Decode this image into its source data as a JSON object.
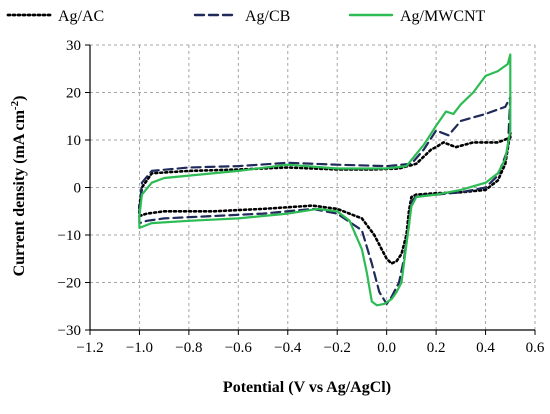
{
  "chart_data": {
    "type": "line",
    "xlabel": "Potential (V vs Ag/AgCl)",
    "ylabel_main": "Current density (mA cm",
    "ylabel_sup": "-2",
    "ylabel_close": ")",
    "xlim": [
      -1.2,
      0.6
    ],
    "ylim": [
      -30,
      30
    ],
    "xticks": [
      -1.2,
      -1.0,
      -0.8,
      -0.6,
      -0.4,
      -0.2,
      0.0,
      0.2,
      0.4,
      0.6
    ],
    "xtick_labels": [
      "−1.2",
      "−1.0",
      "−0.8",
      "−0.6",
      "−0.4",
      "−0.2",
      "0.0",
      "0.2",
      "0.4",
      "0.6"
    ],
    "yticks": [
      -30,
      -20,
      -10,
      0,
      10,
      20,
      30
    ],
    "ytick_labels": [
      "−30",
      "−20",
      "−10",
      "0",
      "10",
      "20",
      "30"
    ],
    "grid": true,
    "legend_position": "top",
    "series": [
      {
        "name": "Ag/AC",
        "color": "#000000",
        "dash": "dotted",
        "x": [
          -1.0,
          -0.99,
          -0.95,
          -0.8,
          -0.6,
          -0.4,
          -0.2,
          -0.05,
          0.05,
          0.12,
          0.18,
          0.2,
          0.23,
          0.28,
          0.35,
          0.45,
          0.5,
          0.5,
          0.48,
          0.45,
          0.4,
          0.3,
          0.2,
          0.12,
          0.1,
          0.09,
          0.08,
          0.06,
          0.04,
          0.02,
          0.0,
          -0.02,
          -0.05,
          -0.1,
          -0.2,
          -0.3,
          -0.5,
          -0.7,
          -0.9,
          -0.97,
          -1.0,
          -1.0
        ],
        "y": [
          -4,
          0,
          3,
          3.5,
          3.8,
          4.2,
          3.8,
          3.8,
          4.0,
          5.0,
          8.0,
          8.5,
          9.5,
          8.5,
          9.5,
          9.5,
          10.5,
          11.5,
          5.0,
          1.5,
          -0.5,
          -1.0,
          -1.2,
          -1.5,
          -2.0,
          -5.0,
          -10.0,
          -14.0,
          -15.5,
          -16.0,
          -15.0,
          -13.0,
          -10.0,
          -6.5,
          -4.5,
          -3.8,
          -4.5,
          -5.0,
          -5.0,
          -5.5,
          -6.0,
          -4.0
        ]
      },
      {
        "name": "Ag/CB",
        "color": "#1f2a5a",
        "dash": "dashed",
        "x": [
          -1.0,
          -0.99,
          -0.95,
          -0.8,
          -0.6,
          -0.4,
          -0.2,
          0.0,
          0.1,
          0.15,
          0.2,
          0.25,
          0.3,
          0.4,
          0.48,
          0.5,
          0.49,
          0.45,
          0.4,
          0.3,
          0.2,
          0.12,
          0.1,
          0.09,
          0.07,
          0.05,
          0.02,
          0.0,
          -0.03,
          -0.06,
          -0.1,
          -0.2,
          -0.3,
          -0.5,
          -0.7,
          -0.9,
          -0.97,
          -1.0,
          -1.0
        ],
        "y": [
          -5.0,
          1.0,
          3.5,
          4.2,
          4.5,
          5.2,
          4.8,
          4.5,
          5.0,
          8.0,
          12.0,
          11.0,
          14.0,
          15.5,
          17.0,
          19.0,
          8.0,
          2.5,
          0.0,
          -1.0,
          -1.5,
          -1.8,
          -3.0,
          -8.0,
          -15.0,
          -20.0,
          -23.0,
          -24.5,
          -22.0,
          -16.0,
          -9.0,
          -5.5,
          -4.5,
          -5.5,
          -6.0,
          -6.5,
          -7.0,
          -7.5,
          -5.0
        ]
      },
      {
        "name": "Ag/MWCNT",
        "color": "#2dbb54",
        "dash": "solid",
        "x": [
          -1.0,
          -0.99,
          -0.95,
          -0.9,
          -0.8,
          -0.6,
          -0.4,
          -0.2,
          0.0,
          0.08,
          0.15,
          0.2,
          0.24,
          0.27,
          0.3,
          0.35,
          0.4,
          0.45,
          0.49,
          0.5,
          0.5,
          0.48,
          0.45,
          0.4,
          0.3,
          0.2,
          0.12,
          0.1,
          0.08,
          0.06,
          0.04,
          0.02,
          -0.01,
          -0.04,
          -0.06,
          -0.08,
          -0.1,
          -0.15,
          -0.2,
          -0.28,
          -0.4,
          -0.6,
          -0.8,
          -0.95,
          -1.0,
          -1.0
        ],
        "y": [
          -6.0,
          -1.5,
          1.0,
          2.0,
          2.5,
          3.5,
          4.8,
          4.0,
          4.0,
          4.5,
          9.0,
          13.0,
          16.0,
          15.5,
          17.5,
          20.0,
          23.5,
          24.5,
          26.0,
          28.0,
          12.0,
          6.0,
          3.0,
          1.0,
          -0.5,
          -1.5,
          -2.0,
          -4.0,
          -12.0,
          -20.0,
          -22.0,
          -23.5,
          -24.5,
          -24.8,
          -24.0,
          -18.0,
          -13.0,
          -7.0,
          -5.0,
          -4.5,
          -5.5,
          -6.5,
          -7.0,
          -7.5,
          -8.5,
          -6.0
        ]
      }
    ]
  }
}
